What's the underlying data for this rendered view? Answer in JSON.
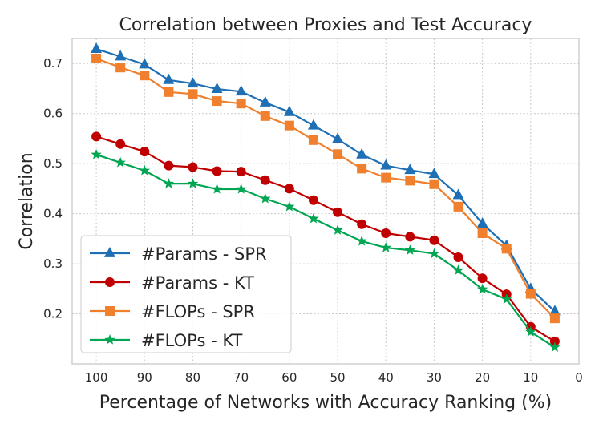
{
  "chart_data": {
    "type": "line",
    "title": "Correlation between Proxies and Test Accuracy",
    "xlabel": "Percentage of Networks with Accuracy Ranking (%)",
    "ylabel": "Correlation",
    "xlim": [
      105,
      0
    ],
    "ylim": [
      0.1,
      0.75
    ],
    "xticks": [
      100,
      90,
      80,
      70,
      60,
      50,
      40,
      30,
      20,
      10,
      0
    ],
    "yticks": [
      0.2,
      0.3,
      0.4,
      0.5,
      0.6,
      0.7
    ],
    "grid": true,
    "legend_position": "lower-left",
    "x": [
      100,
      95,
      90,
      85,
      80,
      75,
      70,
      65,
      60,
      55,
      50,
      45,
      40,
      35,
      30,
      25,
      20,
      15,
      10,
      5
    ],
    "series": [
      {
        "name": "#Params - SPR",
        "color": "#1f6fb4",
        "marker": "triangle",
        "values": [
          0.729,
          0.714,
          0.698,
          0.667,
          0.66,
          0.649,
          0.644,
          0.622,
          0.603,
          0.576,
          0.549,
          0.518,
          0.496,
          0.487,
          0.479,
          0.437,
          0.38,
          0.336,
          0.25,
          0.205
        ]
      },
      {
        "name": "#Params - KT",
        "color": "#c00000",
        "marker": "circle",
        "values": [
          0.554,
          0.539,
          0.524,
          0.496,
          0.493,
          0.485,
          0.484,
          0.467,
          0.45,
          0.427,
          0.403,
          0.379,
          0.361,
          0.354,
          0.347,
          0.313,
          0.271,
          0.239,
          0.174,
          0.145
        ]
      },
      {
        "name": "#FLOPs - SPR",
        "color": "#f07f2e",
        "marker": "square",
        "values": [
          0.71,
          0.692,
          0.676,
          0.643,
          0.639,
          0.625,
          0.62,
          0.595,
          0.576,
          0.547,
          0.519,
          0.49,
          0.472,
          0.466,
          0.459,
          0.414,
          0.361,
          0.33,
          0.24,
          0.191
        ]
      },
      {
        "name": "#FLOPs - KT",
        "color": "#00a651",
        "marker": "star",
        "values": [
          0.518,
          0.502,
          0.486,
          0.46,
          0.46,
          0.449,
          0.449,
          0.43,
          0.414,
          0.39,
          0.367,
          0.345,
          0.332,
          0.327,
          0.32,
          0.287,
          0.249,
          0.229,
          0.164,
          0.133
        ]
      }
    ]
  }
}
